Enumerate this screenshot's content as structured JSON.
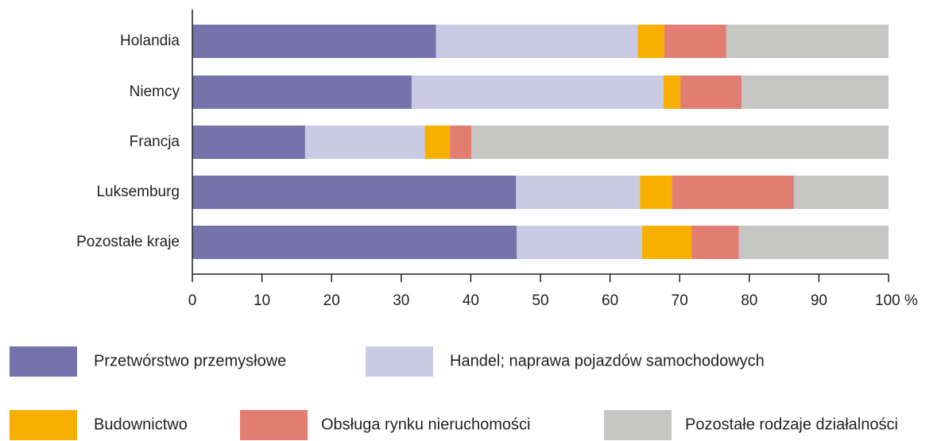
{
  "chart_data": {
    "type": "stacked-barh",
    "categories": [
      "Holandia",
      "Niemcy",
      "Francja",
      "Luksemburg",
      "Pozostałe kraje"
    ],
    "series": [
      {
        "name": "Przetwórstwo przemysłowe",
        "color": "#7473ab",
        "values": [
          35.0,
          31.5,
          16.2,
          46.5,
          46.6
        ]
      },
      {
        "name": "Handel; naprawa pojazdów samochodowych",
        "color": "#cbcae4",
        "values": [
          29.0,
          36.2,
          17.2,
          17.8,
          18.0
        ]
      },
      {
        "name": "Budownictwo",
        "color": "#f7b000",
        "values": [
          3.8,
          2.4,
          3.6,
          4.6,
          7.1
        ]
      },
      {
        "name": "Obsługa rynku nieruchomości",
        "color": "#e27d72",
        "values": [
          8.9,
          8.8,
          3.1,
          17.5,
          6.8
        ]
      },
      {
        "name": "Pozostałe rodzaje działalności",
        "color": "#c6c6c5",
        "values": [
          23.3,
          21.1,
          59.9,
          13.6,
          21.5
        ]
      }
    ],
    "xlim": [
      0,
      100
    ],
    "xticks": [
      0,
      10,
      20,
      30,
      40,
      50,
      60,
      70,
      80,
      90,
      {
        "value": 100,
        "label": "100 %"
      }
    ]
  }
}
